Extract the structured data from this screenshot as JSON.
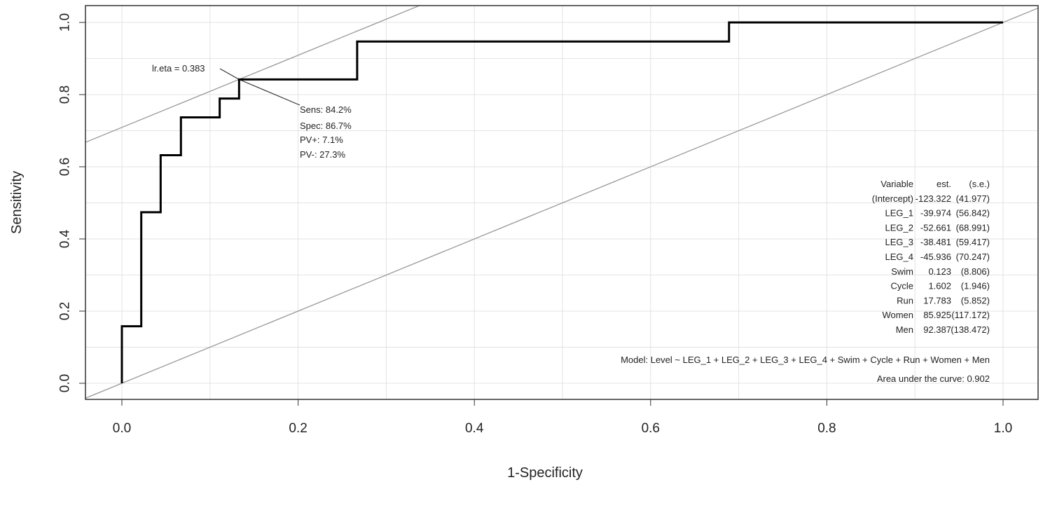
{
  "chart_data": {
    "type": "line",
    "title": "",
    "xlabel": "1-Specificity",
    "ylabel": "Sensitivity",
    "xlim": [
      0,
      1
    ],
    "ylim": [
      0,
      1
    ],
    "grid": true,
    "xticks": [
      "0.0",
      "0.2",
      "0.4",
      "0.6",
      "0.8",
      "1.0"
    ],
    "yticks": [
      "0.0",
      "0.2",
      "0.4",
      "0.6",
      "0.8",
      "1.0"
    ],
    "series": [
      {
        "name": "ROC",
        "x": [
          0,
          0,
          0.022,
          0.022,
          0.044,
          0.044,
          0.067,
          0.067,
          0.111,
          0.111,
          0.133,
          0.133,
          0.267,
          0.267,
          0.689,
          0.689,
          1.0
        ],
        "y": [
          0,
          0.158,
          0.158,
          0.474,
          0.474,
          0.632,
          0.632,
          0.737,
          0.737,
          0.789,
          0.789,
          0.842,
          0.842,
          0.947,
          0.947,
          1.0,
          1.0
        ],
        "color": "#000000"
      }
    ],
    "reference_lines": [
      {
        "name": "diagonal",
        "slope": 1,
        "intercept": 0,
        "color": "#999999"
      },
      {
        "name": "tangent",
        "slope": 1,
        "intercept": 0.709,
        "color": "#999999"
      }
    ],
    "optimal_point": {
      "x": 0.133,
      "y": 0.842
    },
    "annotations": {
      "cutoff": "lr.eta = 0.383",
      "sens": "Sens: 84.2%",
      "spec": "Spec: 86.7%",
      "pvpos": "PV+: 7.1%",
      "pvneg": "PV-: 27.3%"
    },
    "table": {
      "headers": [
        "Variable",
        "est.",
        "(s.e.)"
      ],
      "rows": [
        [
          "(Intercept)",
          "-123.322",
          "(41.977)"
        ],
        [
          "LEG_1",
          "-39.974",
          "(56.842)"
        ],
        [
          "LEG_2",
          "-52.661",
          "(68.991)"
        ],
        [
          "LEG_3",
          "-38.481",
          "(59.417)"
        ],
        [
          "LEG_4",
          "-45.936",
          "(70.247)"
        ],
        [
          "Swim",
          "0.123",
          "(8.806)"
        ],
        [
          "Cycle",
          "1.602",
          "(1.946)"
        ],
        [
          "Run",
          "17.783",
          "(5.852)"
        ],
        [
          "Women",
          "85.925",
          "(117.172)"
        ],
        [
          "Men",
          "92.387",
          "(138.472)"
        ]
      ]
    },
    "model": "Model:  Level ~ LEG_1 + LEG_2 + LEG_3 + LEG_4 + Swim + Cycle + Run + Women + Men",
    "auc": "Area under the curve: 0.902"
  }
}
